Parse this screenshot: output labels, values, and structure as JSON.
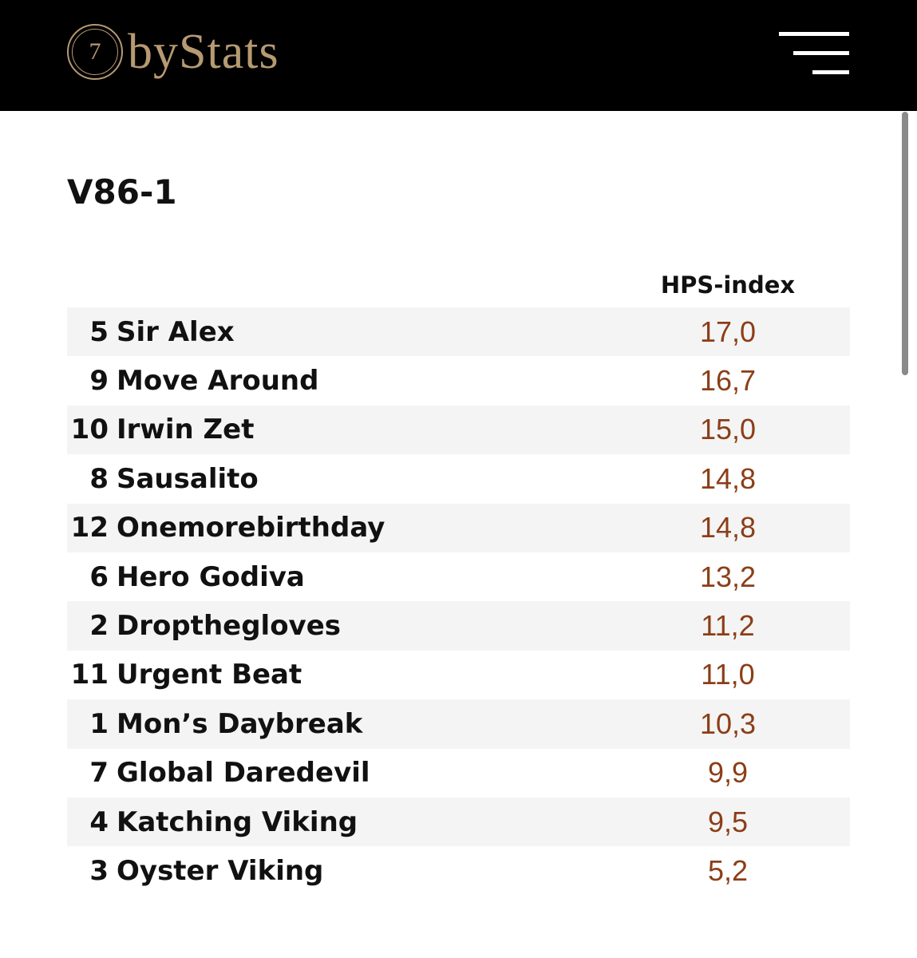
{
  "header": {
    "logo_number": "7",
    "logo_text": "byStats",
    "menu_icon": "hamburger-menu-icon",
    "background": "#000000",
    "logo_color": "#b69a72"
  },
  "race": {
    "title": "V86-1",
    "column_header": "HPS-index",
    "value_color": "#8b3e17",
    "rows": [
      {
        "number": "5",
        "name": "Sir Alex",
        "hps": "17,0"
      },
      {
        "number": "9",
        "name": "Move Around",
        "hps": "16,7"
      },
      {
        "number": "10",
        "name": "Irwin Zet",
        "hps": "15,0"
      },
      {
        "number": "8",
        "name": "Sausalito",
        "hps": "14,8"
      },
      {
        "number": "12",
        "name": "Onemorebirthday",
        "hps": "14,8"
      },
      {
        "number": "6",
        "name": "Hero Godiva",
        "hps": "13,2"
      },
      {
        "number": "2",
        "name": "Dropthegloves",
        "hps": "11,2"
      },
      {
        "number": "11",
        "name": "Urgent Beat",
        "hps": "11,0"
      },
      {
        "number": "1",
        "name": "Mon’s Daybreak",
        "hps": "10,3"
      },
      {
        "number": "7",
        "name": "Global Daredevil",
        "hps": "9,9"
      },
      {
        "number": "4",
        "name": "Katching Viking",
        "hps": "9,5"
      },
      {
        "number": "3",
        "name": "Oyster Viking",
        "hps": "5,2"
      }
    ]
  }
}
